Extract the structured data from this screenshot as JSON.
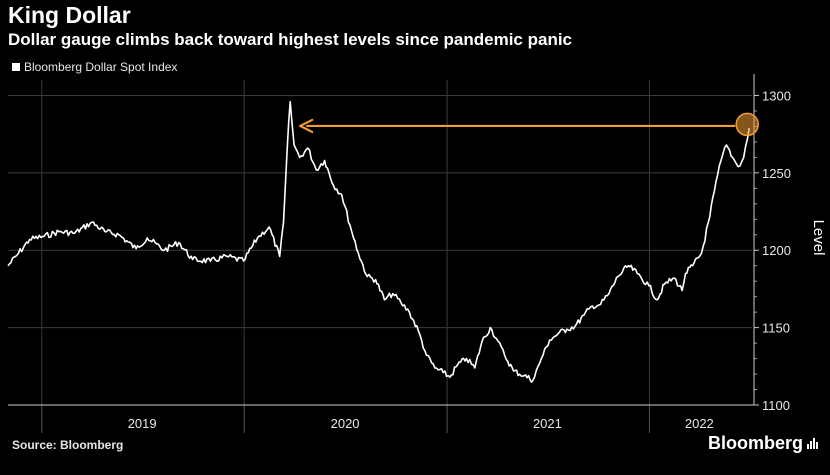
{
  "header": {
    "title": "King Dollar",
    "subtitle": "Dollar gauge climbs back toward highest levels since pandemic panic"
  },
  "legend": {
    "label": "Bloomberg Dollar Spot Index"
  },
  "footer": {
    "source": "Source: Bloomberg",
    "brand": "Bloomberg"
  },
  "colors": {
    "background": "#000000",
    "series": "#ffffff",
    "grid": "#3a3a3a",
    "accent": "#f39c33"
  },
  "icons": {
    "brand_mark": "bar-chart-icon"
  },
  "chart_data": {
    "type": "line",
    "title": "King Dollar",
    "subtitle": "Dollar gauge climbs back toward highest levels since pandemic panic",
    "ylabel": "Level",
    "xlabel": "",
    "ylim": [
      1100,
      1310
    ],
    "yticks": [
      1100,
      1150,
      1200,
      1250,
      1300
    ],
    "x_range": [
      "2018-11-01",
      "2022-07-05"
    ],
    "xtick_boundaries": [
      "2019-01-01",
      "2020-01-01",
      "2021-01-01",
      "2022-01-01"
    ],
    "xtick_labels": [
      {
        "label": "2019",
        "at": "2019-07-01"
      },
      {
        "label": "2020",
        "at": "2020-07-01"
      },
      {
        "label": "2021",
        "at": "2021-07-01"
      },
      {
        "label": "2022",
        "at": "2022-04-01"
      }
    ],
    "grid": true,
    "legend_position": "top-left",
    "series": [
      {
        "name": "Bloomberg Dollar Spot Index",
        "x": [
          "2018-11-01",
          "2018-11-20",
          "2018-12-10",
          "2019-01-05",
          "2019-02-01",
          "2019-03-01",
          "2019-04-01",
          "2019-04-25",
          "2019-05-20",
          "2019-06-20",
          "2019-07-10",
          "2019-08-10",
          "2019-09-05",
          "2019-09-30",
          "2019-11-01",
          "2019-12-01",
          "2019-12-31",
          "2020-01-25",
          "2020-02-15",
          "2020-03-05",
          "2020-03-12",
          "2020-03-19",
          "2020-03-24",
          "2020-03-31",
          "2020-04-10",
          "2020-04-25",
          "2020-05-10",
          "2020-05-25",
          "2020-06-10",
          "2020-06-25",
          "2020-07-10",
          "2020-07-25",
          "2020-08-10",
          "2020-08-25",
          "2020-09-10",
          "2020-09-25",
          "2020-10-10",
          "2020-10-25",
          "2020-11-10",
          "2020-11-25",
          "2020-12-10",
          "2020-12-25",
          "2021-01-06",
          "2021-01-20",
          "2021-02-05",
          "2021-02-20",
          "2021-03-05",
          "2021-03-20",
          "2021-03-31",
          "2021-04-15",
          "2021-05-01",
          "2021-05-20",
          "2021-06-05",
          "2021-06-20",
          "2021-07-05",
          "2021-07-20",
          "2021-08-05",
          "2021-08-20",
          "2021-09-05",
          "2021-09-20",
          "2021-10-05",
          "2021-10-20",
          "2021-11-05",
          "2021-11-24",
          "2021-12-10",
          "2021-12-31",
          "2022-01-15",
          "2022-01-28",
          "2022-02-15",
          "2022-03-01",
          "2022-03-07",
          "2022-03-20",
          "2022-04-05",
          "2022-04-20",
          "2022-04-28",
          "2022-05-10",
          "2022-05-20",
          "2022-05-31",
          "2022-06-10",
          "2022-06-20",
          "2022-06-30"
        ],
        "y": [
          1190,
          1198,
          1207,
          1209,
          1212,
          1211,
          1218,
          1212,
          1210,
          1201,
          1208,
          1200,
          1205,
          1194,
          1193,
          1196,
          1193,
          1208,
          1215,
          1196,
          1218,
          1268,
          1296,
          1268,
          1260,
          1266,
          1252,
          1258,
          1242,
          1236,
          1216,
          1198,
          1183,
          1181,
          1168,
          1172,
          1166,
          1160,
          1148,
          1132,
          1124,
          1121,
          1118,
          1126,
          1130,
          1124,
          1141,
          1150,
          1143,
          1132,
          1122,
          1119,
          1116,
          1130,
          1142,
          1146,
          1149,
          1151,
          1158,
          1164,
          1165,
          1172,
          1183,
          1190,
          1185,
          1177,
          1168,
          1178,
          1182,
          1174,
          1185,
          1190,
          1198,
          1222,
          1238,
          1258,
          1268,
          1260,
          1254,
          1260,
          1279
        ]
      }
    ],
    "annotations": [
      {
        "type": "arrow",
        "from": {
          "x": "2022-06-30",
          "y": 1280
        },
        "to": {
          "x": "2020-03-24",
          "y": 1280
        },
        "color": "#f39c33"
      },
      {
        "type": "circle",
        "at": {
          "x": "2022-06-30",
          "y": 1280
        },
        "color": "#f39c33"
      }
    ]
  }
}
